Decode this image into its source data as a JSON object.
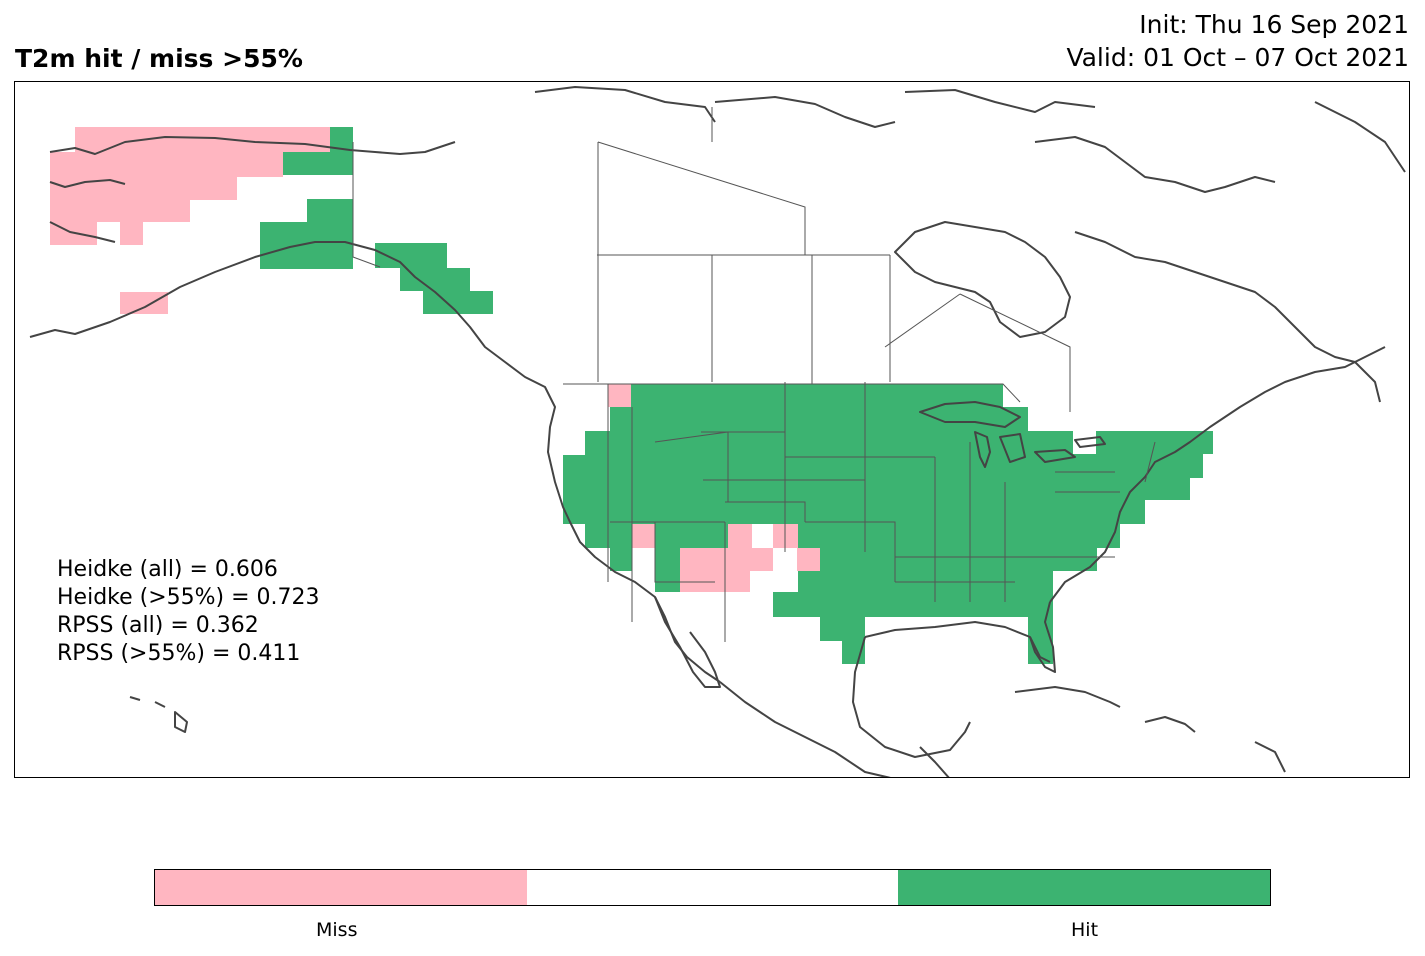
{
  "header": {
    "title": "T2m hit / miss  >55%",
    "init": "Init: Thu 16 Sep 2021",
    "valid": "Valid: 01 Oct – 07 Oct 2021"
  },
  "scores": [
    "Heidke (all) = 0.606",
    "Heidke (>55%) = 0.723",
    "RPSS (all) = 0.362",
    "RPSS (>55%) = 0.411"
  ],
  "legend": {
    "categories": [
      {
        "label": "Miss",
        "color": "#ffb6c1"
      },
      {
        "label": "",
        "color": "#ffffff"
      },
      {
        "label": "Hit",
        "color": "#3cb371"
      }
    ]
  },
  "colors": {
    "miss": "#ffb6c1",
    "hit": "#3cb371",
    "coastline": "#444444",
    "border": "#555555"
  },
  "map": {
    "region": "North America",
    "projection": "PlateCarree",
    "grid_resolution_deg": 1.5
  }
}
